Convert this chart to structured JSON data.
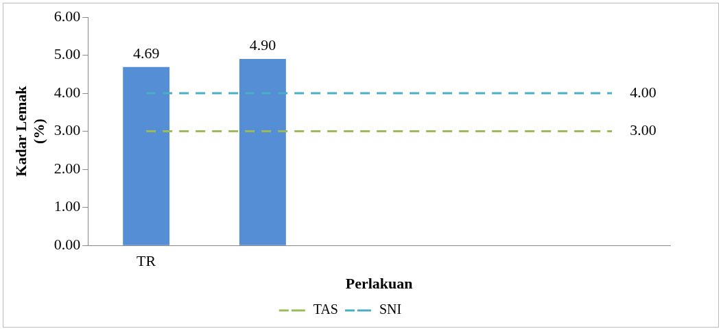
{
  "chart_data": {
    "type": "bar",
    "xlabel": "Perlakuan",
    "ylabel": "Kadar Lemak (%)",
    "categories": [
      "TR",
      null,
      null,
      null,
      null
    ],
    "series": [
      {
        "color": "#558ed5",
        "values": [
          4.69,
          4.9,
          null,
          null,
          null
        ],
        "value_labels": [
          "4.69",
          "4.90",
          null,
          null,
          null
        ]
      },
      {
        "type": "line",
        "name": "TAS",
        "color": "#9bbb59",
        "line_style": "dashed",
        "values": [
          3.0,
          3.0,
          3.0,
          3.0,
          3.0
        ],
        "value_labels": [
          null,
          null,
          null,
          null,
          "3.00"
        ]
      },
      {
        "type": "line",
        "name": "SNI",
        "color": "#4bacc6",
        "line_style": "dashed",
        "values": [
          4.0,
          4.0,
          4.0,
          4.0,
          4.0
        ],
        "value_labels": [
          null,
          null,
          null,
          null,
          "4.00"
        ]
      }
    ],
    "ylim": [
      0,
      6
    ],
    "yticks": [
      {
        "value": 0,
        "label": "0.00"
      },
      {
        "value": 1,
        "label": "1.00"
      },
      {
        "value": 2,
        "label": "2.00"
      },
      {
        "value": 3,
        "label": "3.00"
      },
      {
        "value": 4,
        "label": "4.00"
      },
      {
        "value": 5,
        "label": "5.00"
      },
      {
        "value": 6,
        "label": "6.00"
      }
    ],
    "grid": false,
    "legend": "bottom",
    "marker": "none"
  }
}
